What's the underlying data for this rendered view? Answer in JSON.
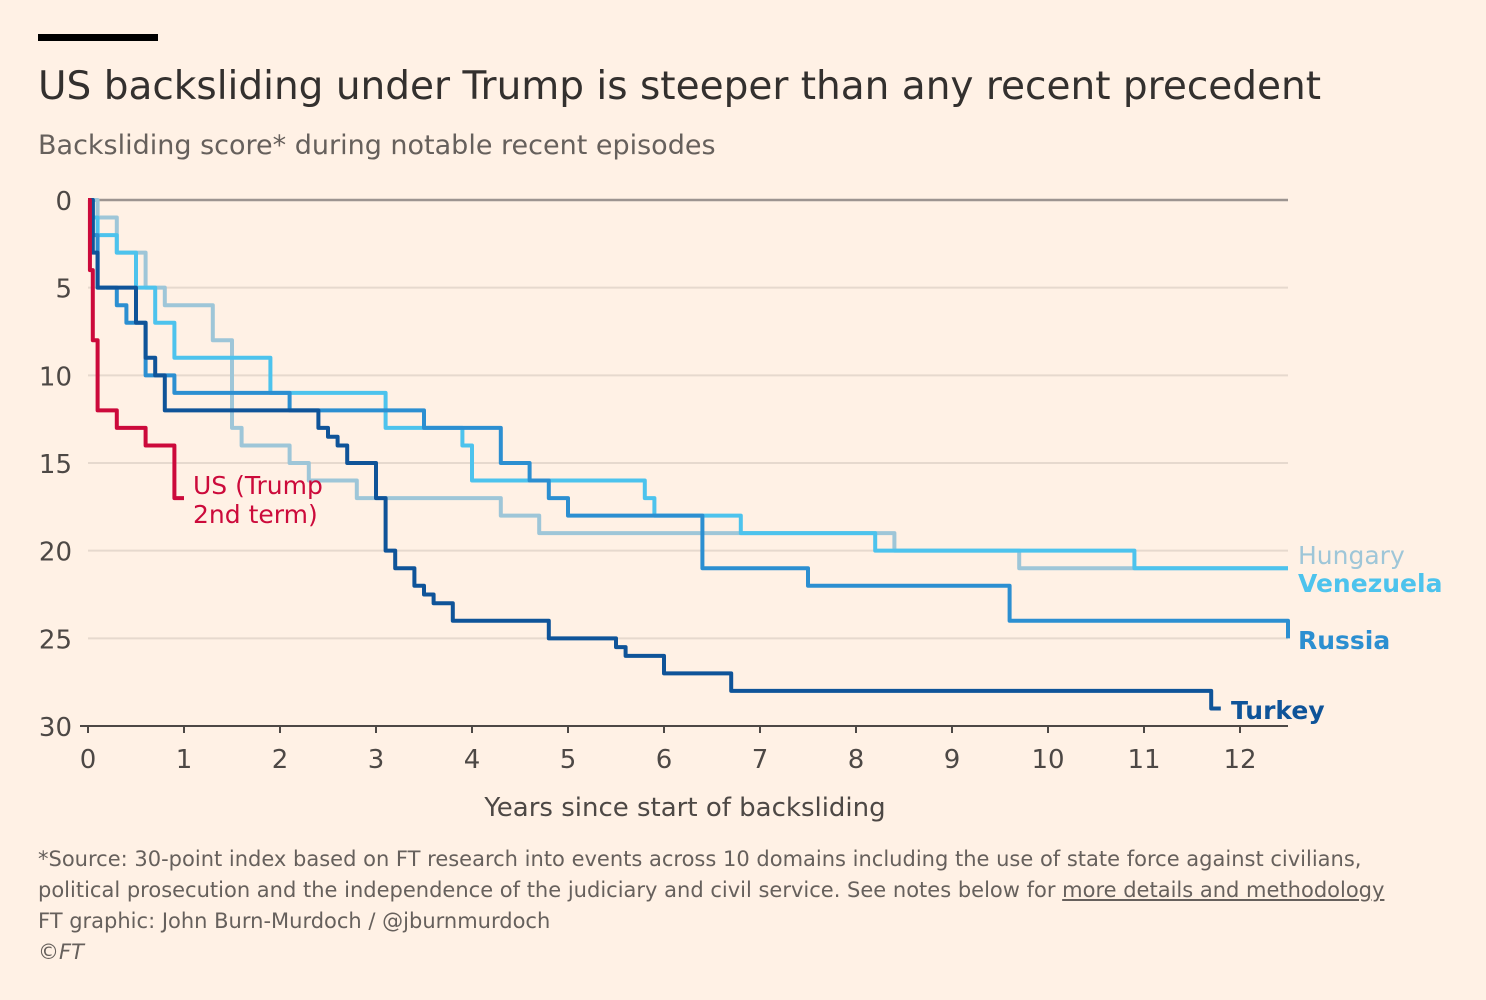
{
  "header": {
    "title": "US backsliding under Trump is steeper than any recent precedent",
    "subtitle": "Backsliding score* during notable recent episodes"
  },
  "chart_data": {
    "type": "line",
    "xlabel": "Years since start of backsliding",
    "ylabel": "",
    "xlim": [
      0,
      12.5
    ],
    "ylim": [
      0,
      30
    ],
    "y_inverted": true,
    "x_ticks": [
      0,
      1,
      2,
      3,
      4,
      5,
      6,
      7,
      8,
      9,
      10,
      11,
      12
    ],
    "y_ticks": [
      0,
      5,
      10,
      15,
      20,
      25,
      30
    ],
    "grid": "horizontal",
    "series": [
      {
        "key": "hungary",
        "name": "Hungary",
        "color": "#9ec6d8",
        "step": true,
        "x": [
          0,
          0.1,
          0.3,
          0.6,
          0.8,
          1.2,
          1.3,
          1.5,
          1.6,
          2.1,
          2.3,
          2.5,
          2.6,
          2.8,
          3.2,
          3.9,
          4.3,
          4.6,
          4.7,
          5.4,
          6.1,
          6.6,
          7.4,
          8.3,
          8.4,
          9.5,
          9.7,
          10.2,
          10.9,
          11.2,
          12.5
        ],
        "y": [
          0,
          1,
          3,
          5,
          6,
          6,
          8,
          13,
          14,
          15,
          16,
          16,
          16,
          17,
          17,
          17,
          18,
          18,
          19,
          19,
          19,
          19,
          19,
          19,
          20,
          20,
          21,
          21,
          21,
          21,
          21
        ]
      },
      {
        "key": "venezuela",
        "name": "Venezuela",
        "color": "#4dc3ed",
        "step": true,
        "x": [
          0,
          0.05,
          0.1,
          0.3,
          0.5,
          0.7,
          0.9,
          1.7,
          1.9,
          3.0,
          3.1,
          3.8,
          3.9,
          4.0,
          5.7,
          5.8,
          5.9,
          6.7,
          6.8,
          8.1,
          8.2,
          10.8,
          10.9,
          12.5
        ],
        "y": [
          0,
          1,
          2,
          3,
          5,
          7,
          9,
          9,
          11,
          11,
          13,
          13,
          14,
          16,
          16,
          17,
          18,
          18,
          19,
          19,
          20,
          20,
          21,
          21
        ]
      },
      {
        "key": "russia",
        "name": "Russia",
        "color": "#2c8fd1",
        "step": true,
        "x": [
          0,
          0.05,
          0.1,
          0.3,
          0.4,
          0.6,
          0.8,
          0.9,
          2.0,
          2.1,
          3.4,
          3.5,
          4.2,
          4.3,
          4.6,
          4.8,
          5.0,
          6.2,
          6.4,
          7.4,
          7.5,
          9.5,
          9.6,
          12.3,
          12.5
        ],
        "y": [
          0,
          2,
          5,
          6,
          7,
          10,
          10,
          11,
          11,
          12,
          12,
          13,
          13,
          15,
          16,
          17,
          18,
          18,
          21,
          21,
          22,
          22,
          24,
          24,
          25
        ]
      },
      {
        "key": "turkey",
        "name": "Turkey",
        "color": "#0f5499",
        "step": true,
        "x": [
          0,
          0.05,
          0.1,
          0.4,
          0.5,
          0.6,
          0.7,
          0.8,
          2.3,
          2.4,
          2.5,
          2.6,
          2.7,
          2.9,
          3.0,
          3.1,
          3.2,
          3.3,
          3.4,
          3.5,
          3.6,
          3.7,
          3.8,
          4.7,
          4.8,
          5.4,
          5.5,
          5.6,
          5.9,
          6.0,
          6.6,
          6.7,
          11.6,
          11.7,
          11.8
        ],
        "y": [
          0,
          3,
          5,
          5,
          7,
          9,
          10,
          12,
          12,
          13,
          13.5,
          14,
          15,
          15,
          17,
          20,
          21,
          21,
          22,
          22.5,
          23,
          23,
          24,
          24,
          25,
          25,
          25.5,
          26,
          26,
          27,
          27,
          28,
          28,
          29,
          29
        ]
      },
      {
        "key": "us",
        "name": "US (Trump 2nd term)",
        "color": "#cc0a3b",
        "step": true,
        "x": [
          0,
          0.02,
          0.05,
          0.1,
          0.2,
          0.3,
          0.5,
          0.6,
          0.8,
          0.9,
          1.0
        ],
        "y": [
          0,
          4,
          8,
          12,
          12,
          13,
          13,
          14,
          14,
          17,
          17
        ]
      }
    ],
    "labels": {
      "hungary": "Hungary",
      "venezuela": "Venezuela",
      "russia": "Russia",
      "turkey": "Turkey",
      "us_line1": "US (Trump",
      "us_line2": "2nd term)"
    }
  },
  "footer": {
    "note_line1": "*Source: 30-point index based on FT research into events across 10 domains including the use of state force against civilians,",
    "note_line2_prefix": "political prosecution and the independence of the judiciary and civil service. See notes below for ",
    "note_link": "more details and methodology",
    "credit": "FT graphic: John Burn-Murdoch / @jburnmurdoch",
    "copyright": "©FT"
  }
}
